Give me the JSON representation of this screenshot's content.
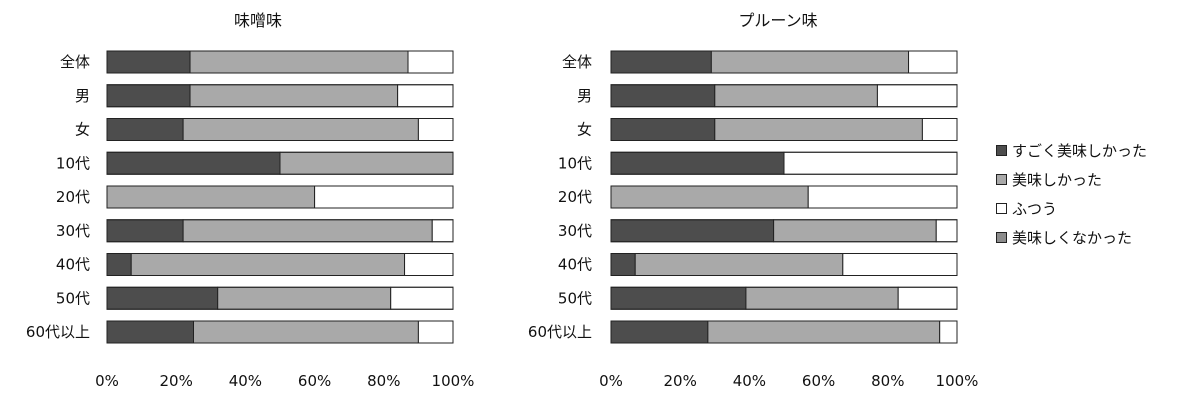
{
  "colors": {
    "very_good": "#4d4d4d",
    "good": "#a9a9a9",
    "normal": "#ffffff",
    "not_good": "#8c8c8c",
    "border": "#222222"
  },
  "legend": {
    "items": [
      {
        "label": "すごく美味しかった",
        "color": "#4d4d4d"
      },
      {
        "label": "美味しかった",
        "color": "#a9a9a9"
      },
      {
        "label": "ふつう",
        "color": "#ffffff"
      },
      {
        "label": "美味しくなかった",
        "color": "#8c8c8c"
      }
    ]
  },
  "chart_data": [
    {
      "type": "bar",
      "orientation": "horizontal",
      "stacked": "percent",
      "title": "味噌味",
      "categories": [
        "全体",
        "男",
        "女",
        "10代",
        "20代",
        "30代",
        "40代",
        "50代",
        "60代以上"
      ],
      "x_ticks": [
        "0%",
        "20%",
        "40%",
        "60%",
        "80%",
        "100%"
      ],
      "xlim": [
        0,
        100
      ],
      "series": [
        {
          "name": "すごく美味しかった",
          "values": [
            24,
            24,
            22,
            50,
            0,
            22,
            7,
            32,
            25
          ]
        },
        {
          "name": "美味しかった",
          "values": [
            63,
            60,
            68,
            50,
            60,
            72,
            79,
            50,
            65
          ]
        },
        {
          "name": "ふつう",
          "values": [
            13,
            16,
            10,
            0,
            40,
            6,
            14,
            18,
            10
          ]
        },
        {
          "name": "美味しくなかった",
          "values": [
            0,
            0,
            0,
            0,
            0,
            0,
            0,
            0,
            0
          ]
        }
      ]
    },
    {
      "type": "bar",
      "orientation": "horizontal",
      "stacked": "percent",
      "title": "プルーン味",
      "categories": [
        "全体",
        "男",
        "女",
        "10代",
        "20代",
        "30代",
        "40代",
        "50代",
        "60代以上"
      ],
      "x_ticks": [
        "0%",
        "20%",
        "40%",
        "60%",
        "80%",
        "100%"
      ],
      "xlim": [
        0,
        100
      ],
      "series": [
        {
          "name": "すごく美味しかった",
          "values": [
            29,
            30,
            30,
            50,
            0,
            47,
            7,
            39,
            28
          ]
        },
        {
          "name": "美味しかった",
          "values": [
            57,
            47,
            60,
            0,
            57,
            47,
            60,
            44,
            67
          ]
        },
        {
          "name": "ふつう",
          "values": [
            14,
            23,
            10,
            50,
            43,
            6,
            33,
            17,
            5
          ]
        },
        {
          "name": "美味しくなかった",
          "values": [
            0,
            0,
            0,
            0,
            0,
            0,
            0,
            0,
            0
          ]
        }
      ]
    }
  ]
}
